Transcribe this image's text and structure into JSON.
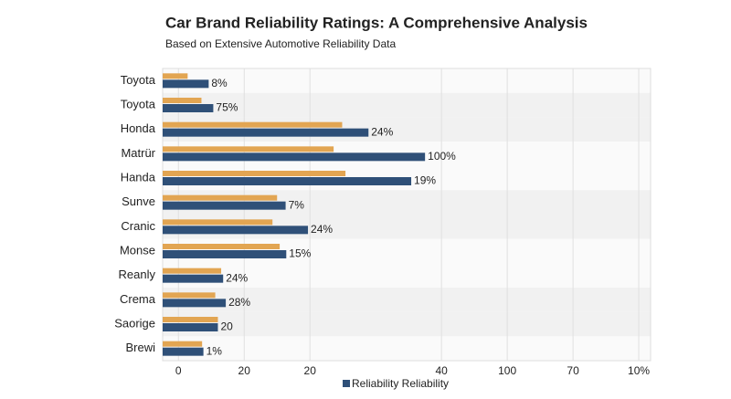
{
  "chart_data": {
    "type": "bar",
    "orientation": "horizontal",
    "title": "Car Brand Reliability Ratings: A Comprehensive Analysis",
    "subtitle": "Based on Extensive Automotive Reliability Data",
    "categories": [
      "Toyota",
      "Toyota",
      "Honda",
      "Matrür",
      "Handa",
      "Sunve",
      "Cranic",
      "Monse",
      "Reanly",
      "Crema",
      "Saorige",
      "Brewi"
    ],
    "series": [
      {
        "color": "#e2a552",
        "values": [
          1.4,
          3.5,
          24.9,
          23.6,
          25.4,
          15,
          14.3,
          15.4,
          6.5,
          5.6,
          6.0,
          3.6
        ]
      },
      {
        "name": "Reliability Reliability",
        "color": "#2f5078",
        "values": [
          4.6,
          5.3,
          28.9,
          37.5,
          35.4,
          16.3,
          19.7,
          16.4,
          6.8,
          7.2,
          6.0,
          3.8
        ]
      }
    ],
    "data_labels": [
      "8%",
      "75%",
      "24%",
      "100%",
      "19%",
      "7%",
      "24%",
      "15%",
      "24%",
      "28%",
      "20",
      "1%"
    ],
    "xlim": [
      -2.4,
      71.8
    ],
    "xticks": [
      0,
      {
        "value": 10,
        "label": "20"
      },
      {
        "value": 20,
        "label": "20"
      },
      40,
      {
        "value": 50,
        "label": "100"
      },
      {
        "value": 60,
        "label": "70"
      },
      {
        "value": 70,
        "label": "10%"
      }
    ],
    "grid": true,
    "legend": "bottom"
  }
}
